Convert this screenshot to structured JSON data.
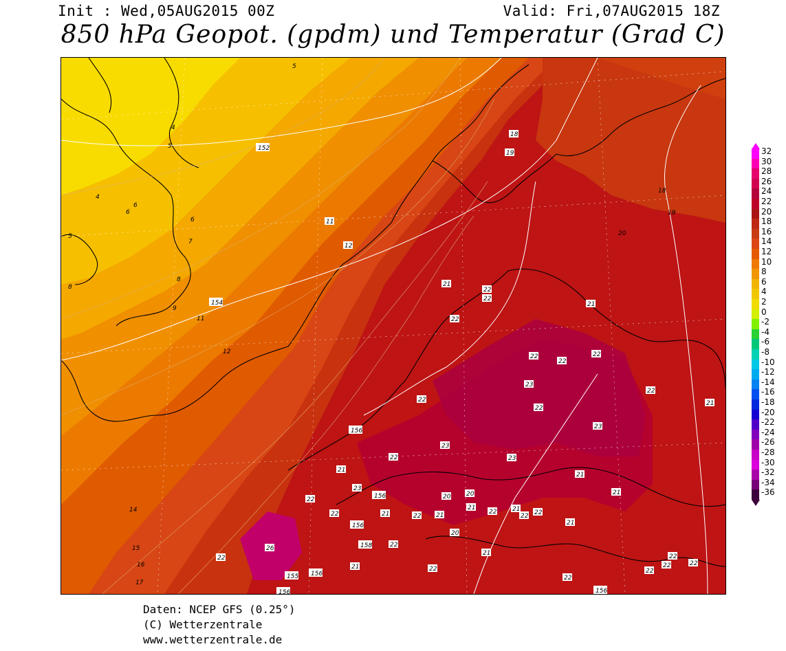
{
  "header": {
    "init": "Init : Wed,05AUG2015 00Z",
    "valid": "Valid: Fri,07AUG2015 18Z",
    "title": "850 hPa Geopot. (gpdm) und Temperatur (Grad C)"
  },
  "footer": {
    "source": "Daten: NCEP GFS (0.25°)",
    "copyright": "(C) Wetterzentrale",
    "url": "www.wetterzentrale.de"
  },
  "legend": {
    "levels": [
      "32",
      "30",
      "28",
      "26",
      "24",
      "22",
      "20",
      "18",
      "16",
      "14",
      "12",
      "10",
      "8",
      "6",
      "4",
      "2",
      "0",
      "-2",
      "-4",
      "-6",
      "-8",
      "-10",
      "-12",
      "-14",
      "-16",
      "-18",
      "-20",
      "-22",
      "-24",
      "-26",
      "-28",
      "-30",
      "-32",
      "-34",
      "-36"
    ],
    "colors": [
      "#ff00ff",
      "#ff00b4",
      "#e6006e",
      "#d20050",
      "#b4003c",
      "#be0028",
      "#aa1414",
      "#be2814",
      "#c83c14",
      "#dc4614",
      "#e65a00",
      "#f07800",
      "#f09600",
      "#f0b400",
      "#f0c800",
      "#f0dc00",
      "#d2f000",
      "#82f000",
      "#28d232",
      "#00c878",
      "#00d2b4",
      "#00c8e6",
      "#00aaf0",
      "#0082f0",
      "#0050f0",
      "#0028dc",
      "#1400d2",
      "#5000c8",
      "#8200be",
      "#a000aa",
      "#c800c8",
      "#dc00dc",
      "#aa00aa",
      "#780078",
      "#3c003c"
    ]
  },
  "map": {
    "contour_labels": [
      "5",
      "4",
      "5",
      "152",
      "4",
      "6",
      "6",
      "6",
      "5",
      "7",
      "8",
      "8",
      "9",
      "154",
      "11",
      "11",
      "12",
      "12",
      "14",
      "15",
      "16",
      "17",
      "18",
      "19",
      "18",
      "19",
      "20",
      "21",
      "22",
      "22",
      "21",
      "22",
      "22",
      "22",
      "23",
      "22",
      "22",
      "22",
      "23",
      "21",
      "23",
      "23",
      "22",
      "21",
      "21",
      "21",
      "156",
      "23",
      "21",
      "22",
      "22",
      "156",
      "22",
      "21",
      "22",
      "23",
      "20",
      "20",
      "21",
      "22",
      "21",
      "22",
      "21",
      "21",
      "22",
      "22",
      "20",
      "21",
      "21",
      "26",
      "22",
      "156",
      "155",
      "156",
      "158",
      "22",
      "21",
      "21",
      "22",
      "22",
      "22",
      "22",
      "22",
      "156",
      "22"
    ]
  }
}
